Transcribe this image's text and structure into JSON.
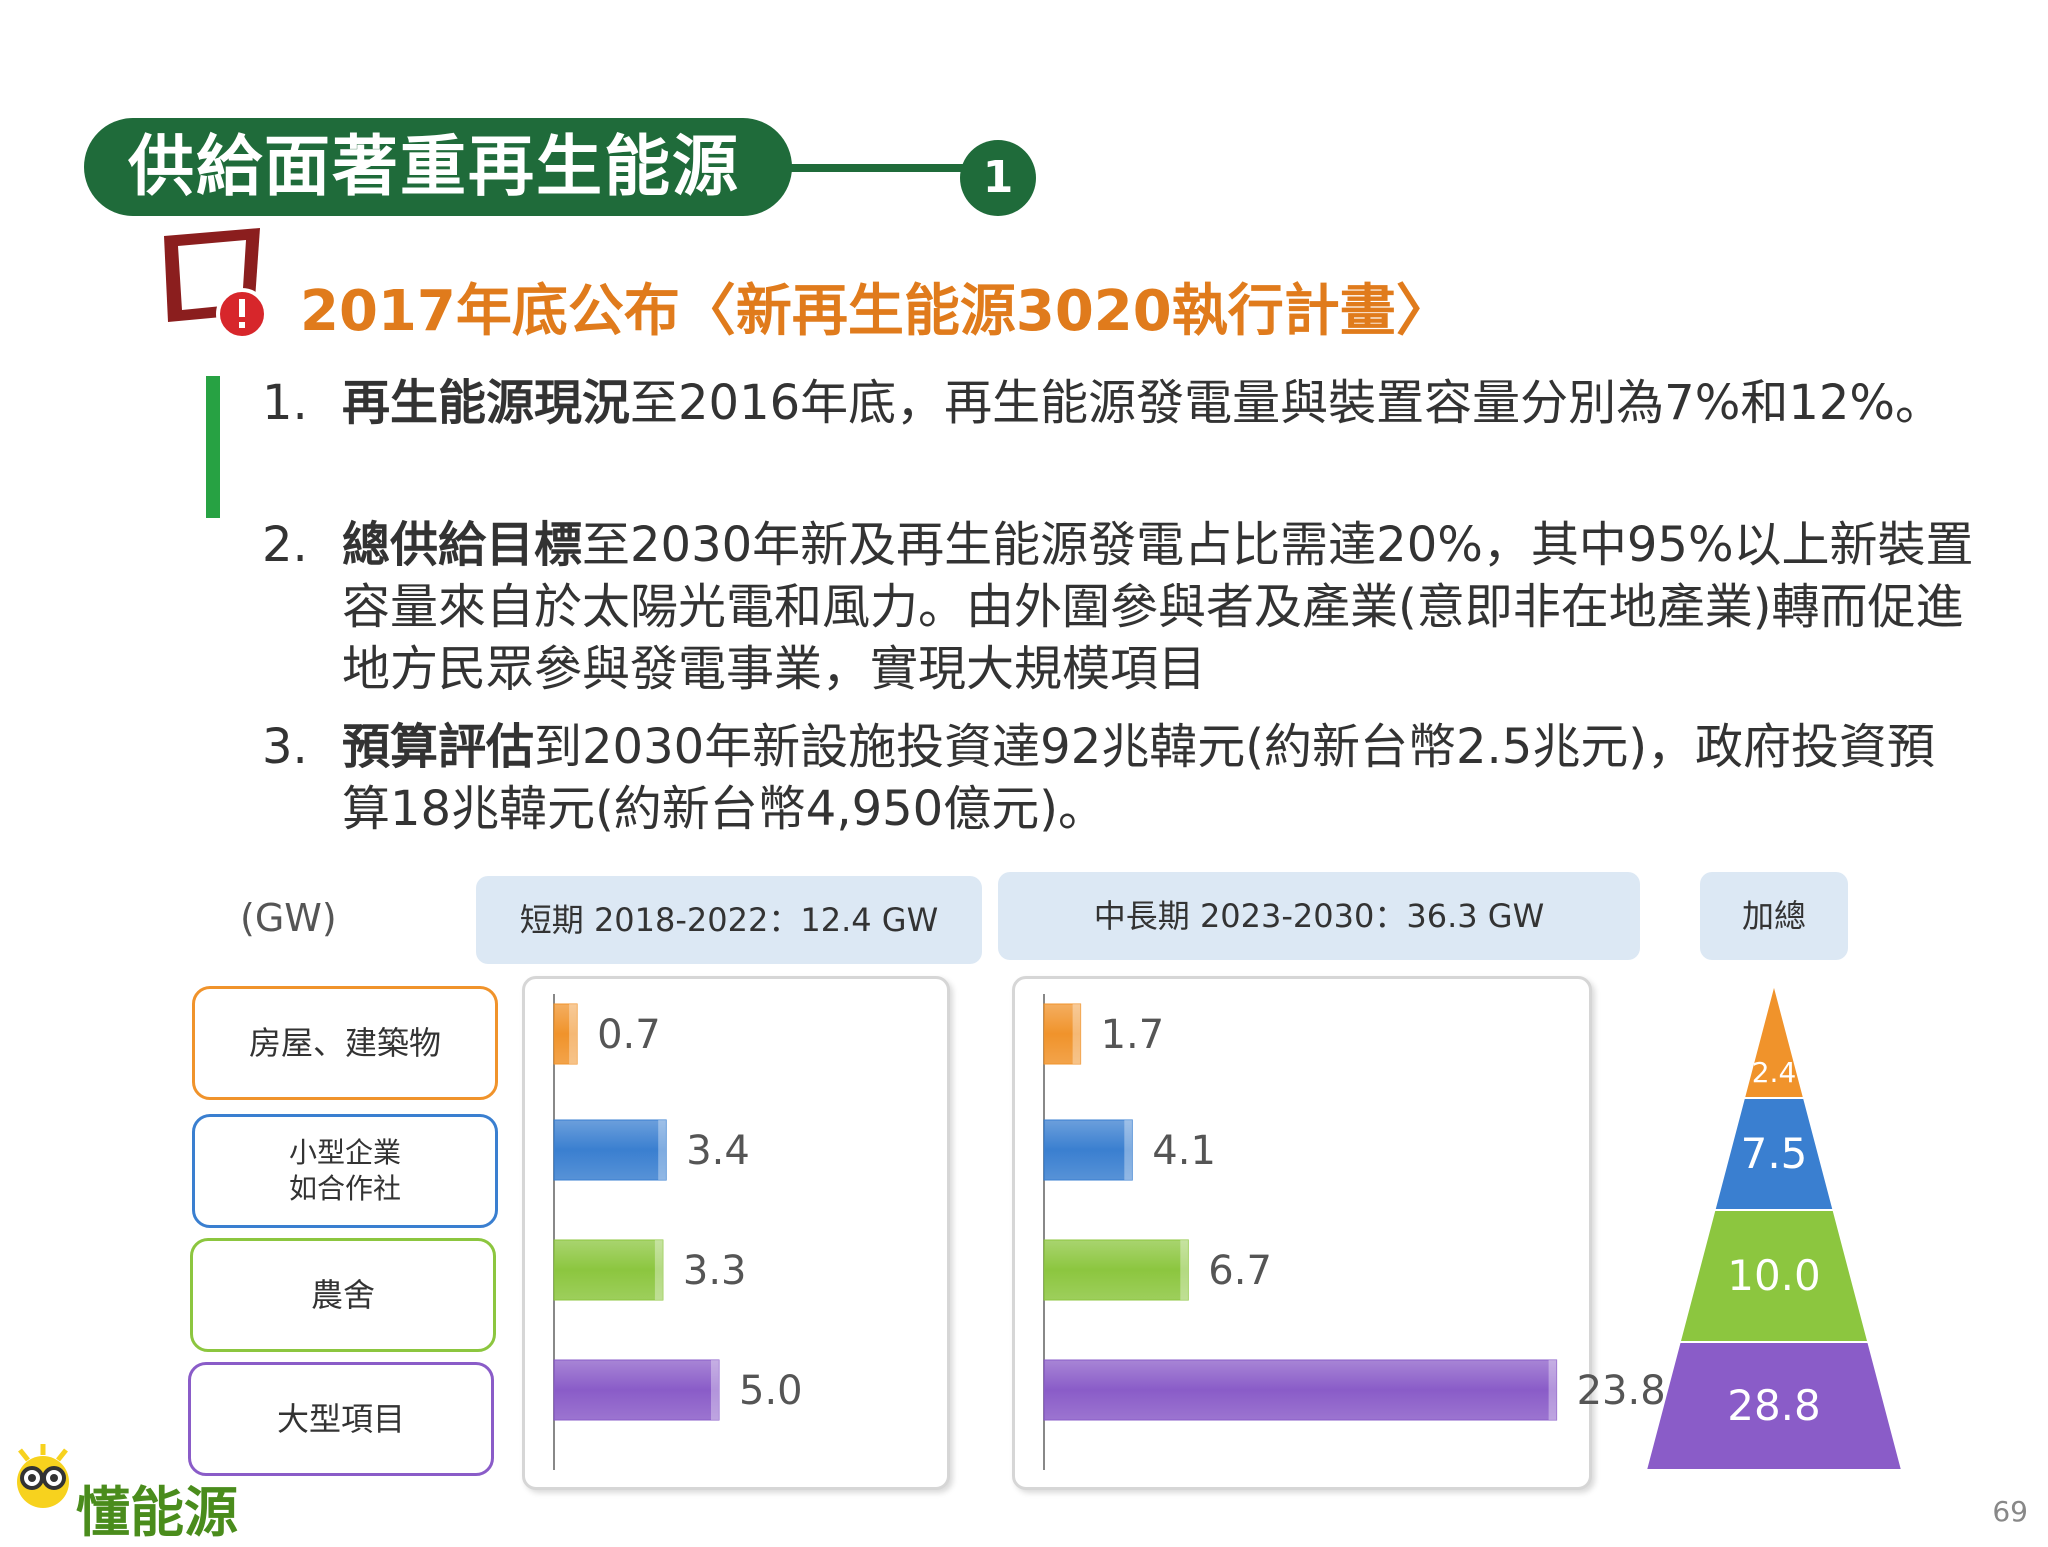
{
  "slide": {
    "title": "供給面著重再生能源",
    "badge": "1",
    "subtitle": "2017年底公布〈新再生能源3020執行計畫〉",
    "page_number": "69",
    "logo_text": "懂能源"
  },
  "items": [
    {
      "num": "1.",
      "bold": "再生能源現況",
      "text": "至2016年底，再生能源發電量與裝置容量分別為7%和12%。"
    },
    {
      "num": "2.",
      "bold": "總供給目標",
      "text": "至2030年新及再生能源發電占比需達20%，其中95%以上新裝置容量來自於太陽光電和風力。由外圍參與者及產業(意即非在地產業)轉而促進地方民眾參與發電事業，實現大規模項目"
    },
    {
      "num": "3.",
      "bold": "預算評估",
      "text": "到2030年新設施投資達92兆韓元(約新台幣2.5兆元)，政府投資預算18兆韓元(約新台幣4,950億元)。"
    }
  ],
  "chart_data": {
    "type": "bar",
    "unit": "(GW)",
    "categories": [
      "房屋、建築物",
      "小型企業\n如合作社",
      "農舍",
      "大型項目"
    ],
    "category_colors": [
      "#f0932b",
      "#3a7fd0",
      "#8cc63f",
      "#8a5cc8"
    ],
    "panels": [
      {
        "header": "短期 2018-2022：12.4 GW",
        "values": [
          0.7,
          3.4,
          3.3,
          5.0
        ],
        "labels": [
          "0.7",
          "3.4",
          "3.3",
          "5.0"
        ],
        "xlim": [
          0,
          10
        ]
      },
      {
        "header": "中長期 2023-2030：36.3 GW",
        "values": [
          1.7,
          4.1,
          6.7,
          23.8
        ],
        "labels": [
          "1.7",
          "4.1",
          "6.7",
          "23.8"
        ],
        "xlim": [
          0,
          26
        ]
      }
    ],
    "total": {
      "header": "加總",
      "values": [
        2.4,
        7.5,
        10.0,
        28.8
      ],
      "labels": [
        "2.4",
        "7.5",
        "10.0",
        "28.8"
      ]
    }
  }
}
